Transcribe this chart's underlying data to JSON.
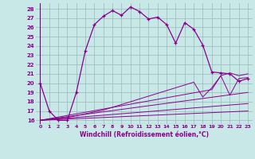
{
  "xlabel": "Windchill (Refroidissement éolien,°C)",
  "bg_color": "#c8e8e8",
  "grid_color": "#b0c8c8",
  "line_color": "#8b008b",
  "x_ticks": [
    0,
    1,
    2,
    3,
    4,
    5,
    6,
    7,
    8,
    9,
    10,
    11,
    12,
    13,
    14,
    15,
    16,
    17,
    18,
    19,
    20,
    21,
    22,
    23
  ],
  "y_ticks": [
    16,
    17,
    18,
    19,
    20,
    21,
    22,
    23,
    24,
    25,
    26,
    27,
    28
  ],
  "ylim": [
    15.6,
    28.6
  ],
  "xlim": [
    -0.5,
    23.5
  ],
  "main_line": {
    "x": [
      0,
      1,
      2,
      3,
      4,
      5,
      6,
      7,
      8,
      9,
      10,
      11,
      12,
      13,
      14,
      15,
      16,
      17,
      18,
      19,
      20,
      21,
      22,
      23
    ],
    "y": [
      20,
      17,
      16,
      16,
      19,
      23.5,
      26.3,
      27.2,
      27.8,
      27.3,
      28.2,
      27.7,
      26.9,
      27.1,
      26.3,
      24.3,
      26.5,
      25.8,
      24.1,
      21.2,
      21.1,
      21.0,
      20.2,
      20.5
    ]
  },
  "line2": {
    "x": [
      0,
      1,
      2,
      3,
      4,
      5,
      6,
      7,
      8,
      9,
      10,
      11,
      12,
      13,
      14,
      15,
      16,
      17,
      18,
      19,
      20,
      21,
      22,
      23
    ],
    "y": [
      16.0,
      16.1,
      16.2,
      16.3,
      16.5,
      16.7,
      16.9,
      17.1,
      17.4,
      17.7,
      18.0,
      18.3,
      18.6,
      18.9,
      19.2,
      19.5,
      19.8,
      20.1,
      18.5,
      19.5,
      20.8,
      18.7,
      20.5,
      20.6
    ]
  },
  "line3": {
    "x": [
      0,
      19,
      20,
      21,
      22,
      23
    ],
    "y": [
      16.0,
      19.3,
      20.8,
      21.1,
      20.8,
      21.0
    ]
  },
  "line4": {
    "x": [
      0,
      23
    ],
    "y": [
      16.0,
      19.0
    ]
  },
  "line5": {
    "x": [
      0,
      23
    ],
    "y": [
      16.0,
      17.8
    ]
  },
  "line6": {
    "x": [
      0,
      23
    ],
    "y": [
      16.0,
      17.0
    ]
  }
}
